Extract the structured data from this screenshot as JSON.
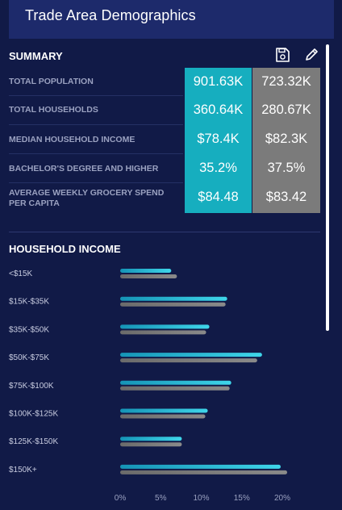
{
  "header": {
    "title": "Trade Area Demographics"
  },
  "summary": {
    "title": "SUMMARY",
    "save_icon": "save-icon",
    "edit_icon": "pencil-icon",
    "rows": [
      {
        "label": "TOTAL POPULATION",
        "v1": "901.63K",
        "v2": "723.32K"
      },
      {
        "label": "TOTAL HOUSEHOLDS",
        "v1": "360.64K",
        "v2": "280.67K"
      },
      {
        "label": "MEDIAN HOUSEHOLD INCOME",
        "v1": "$78.4K",
        "v2": "$82.3K"
      },
      {
        "label": "BACHELOR'S DEGREE AND HIGHER",
        "v1": "35.2%",
        "v2": "37.5%"
      },
      {
        "label_line1": "AVERAGE WEEKLY GROCERY SPEND",
        "label_line2": "PER CAPITA",
        "v1": "$84.48",
        "v2": "$83.42"
      }
    ],
    "colors": {
      "area1": "#16aebf",
      "area2": "#7b7b7b"
    }
  },
  "income": {
    "title": "HOUSEHOLD INCOME"
  },
  "chart_data": {
    "type": "bar",
    "orientation": "horizontal",
    "categories": [
      "<$15K",
      "$15K-$35K",
      "$35K-$50K",
      "$50K-$75K",
      "$75K-$100K",
      "$100K-$125K",
      "$125K-$150K",
      "$150K+"
    ],
    "series": [
      {
        "values": [
          6.3,
          13.2,
          11.0,
          17.5,
          13.7,
          10.8,
          7.6,
          19.8
        ],
        "color": "#2cc3da"
      },
      {
        "values": [
          7.0,
          13.0,
          10.6,
          16.9,
          13.5,
          10.5,
          7.6,
          20.6
        ],
        "color": "#7d7d7d"
      }
    ],
    "xlim": [
      0,
      20
    ],
    "xticks": [
      "0%",
      "5%",
      "10%",
      "15%",
      "20%"
    ],
    "title": "",
    "xlabel": "",
    "ylabel": "",
    "grid": false
  }
}
